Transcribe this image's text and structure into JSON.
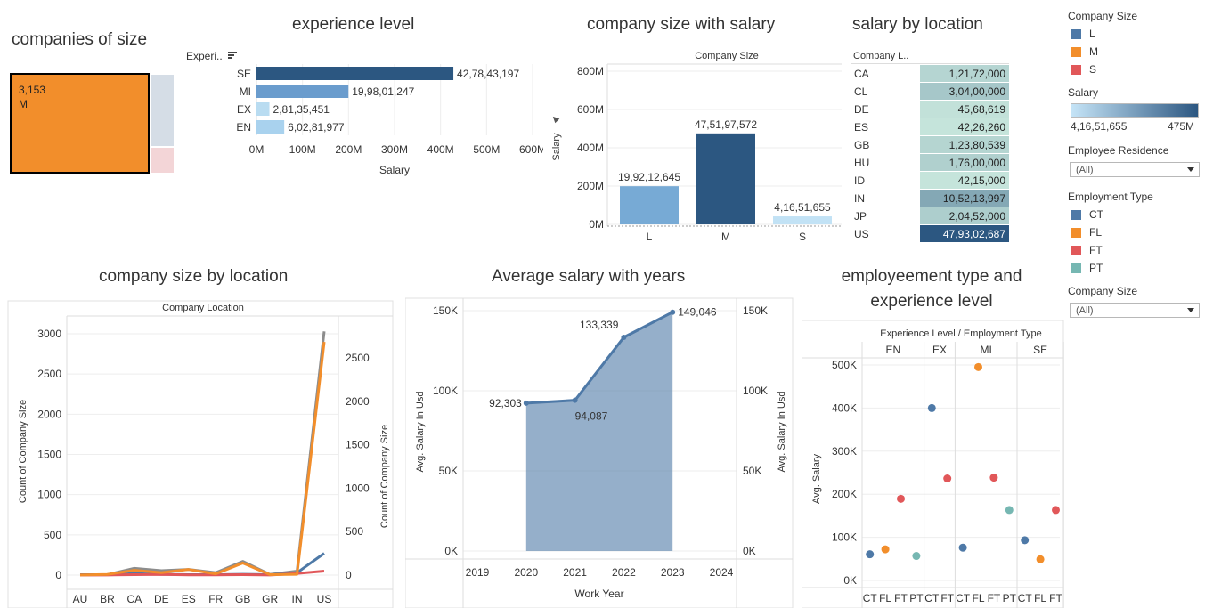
{
  "titles": {
    "companies_of_size": "companies of size",
    "experience_level": "experience level",
    "company_size_salary": "company size with salary",
    "salary_by_location": "salary by location",
    "company_size_location": "company size by location",
    "avg_salary_years": "Average salary with years",
    "emp_type_exp_line1": "employeement type and",
    "emp_type_exp_line2": "experience level"
  },
  "legend": {
    "company_size_title": "Company Size",
    "company_size_items": [
      {
        "label": "L",
        "color": "#4e79a7"
      },
      {
        "label": "M",
        "color": "#f28e2b"
      },
      {
        "label": "S",
        "color": "#e15759"
      }
    ],
    "salary_title": "Salary",
    "salary_min": "4,16,51,655",
    "salary_max": "475M",
    "employee_residence_title": "Employee Residence",
    "employee_residence_value": "(All)",
    "employment_type_title": "Employment Type",
    "employment_type_items": [
      {
        "label": "CT",
        "color": "#4e79a7"
      },
      {
        "label": "FL",
        "color": "#f28e2b"
      },
      {
        "label": "FT",
        "color": "#e15759"
      },
      {
        "label": "PT",
        "color": "#76b7b2"
      }
    ],
    "company_size_filter_title": "Company Size",
    "company_size_filter_value": "(All)"
  },
  "treemap": {
    "value": "3,153",
    "label": "M"
  },
  "salary_location": {
    "header": "Company L..",
    "rows": [
      {
        "loc": "CA",
        "value": "1,21,72,000"
      },
      {
        "loc": "CL",
        "value": "3,04,00,000"
      },
      {
        "loc": "DE",
        "value": "45,68,619"
      },
      {
        "loc": "ES",
        "value": "42,26,260"
      },
      {
        "loc": "GB",
        "value": "1,23,80,539"
      },
      {
        "loc": "HU",
        "value": "1,76,00,000"
      },
      {
        "loc": "ID",
        "value": "42,15,000"
      },
      {
        "loc": "IN",
        "value": "10,52,13,997"
      },
      {
        "loc": "JP",
        "value": "2,04,52,000"
      },
      {
        "loc": "US",
        "value": "47,93,02,687"
      }
    ]
  },
  "chart_data": [
    {
      "type": "bar",
      "orientation": "horizontal",
      "title": "experience level",
      "y_header": "Experi..",
      "xlabel": "Salary",
      "categories": [
        "SE",
        "MI",
        "EX",
        "EN"
      ],
      "values": [
        427843197,
        199801247,
        28135451,
        60281977
      ],
      "labels": [
        "42,78,43,197",
        "19,98,01,247",
        "2,81,35,451",
        "6,02,81,977"
      ],
      "colors": [
        "#2c5781",
        "#6a9ccd",
        "#b9dcf1",
        "#a9d2ee"
      ],
      "xlim": [
        0,
        600000000
      ],
      "xticks": [
        "0M",
        "100M",
        "200M",
        "300M",
        "400M",
        "500M",
        "600M"
      ]
    },
    {
      "type": "bar",
      "title": "company size with salary",
      "header": "Company Size",
      "ylabel": "Salary",
      "categories": [
        "L",
        "M",
        "S"
      ],
      "values": [
        199212645,
        475197572,
        41651655
      ],
      "labels": [
        "19,92,12,645",
        "47,51,97,572",
        "4,16,51,655"
      ],
      "colors": [
        "#77aad5",
        "#2c5781",
        "#c2e2f5"
      ],
      "ylim": [
        0,
        800000000
      ],
      "yticks": [
        "0M",
        "200M",
        "400M",
        "600M",
        "800M"
      ]
    },
    {
      "type": "line",
      "title": "company size by location",
      "header": "Company Location",
      "ylabel": "Count of Company Size",
      "ylabel_right": "Count of Company Size",
      "categories": [
        "AU",
        "BR",
        "CA",
        "DE",
        "ES",
        "FR",
        "GB",
        "GR",
        "IN",
        "US"
      ],
      "ylim_left": [
        0,
        3000
      ],
      "ylim_right": [
        0,
        2500
      ],
      "yticks_left": [
        "0",
        "500",
        "1000",
        "1500",
        "2000",
        "2500",
        "3000"
      ],
      "yticks_right": [
        "0",
        "500",
        "1000",
        "1500",
        "2000",
        "2500"
      ],
      "series": [
        {
          "name": "L",
          "color": "#4e79a7",
          "values": [
            5,
            5,
            20,
            10,
            5,
            5,
            10,
            5,
            30,
            270
          ]
        },
        {
          "name": "M",
          "color": "#f28e2b",
          "values": [
            2,
            8,
            60,
            30,
            70,
            15,
            150,
            5,
            10,
            2900
          ]
        },
        {
          "name": "S",
          "color": "#e15759",
          "values": [
            1,
            2,
            5,
            8,
            3,
            3,
            5,
            1,
            20,
            50
          ]
        },
        {
          "name": "",
          "color": "#8c8c8c",
          "values": [
            3,
            6,
            85,
            55,
            70,
            30,
            170,
            8,
            50,
            3030
          ]
        }
      ]
    },
    {
      "type": "area",
      "title": "Average salary with years",
      "xlabel": "Work Year",
      "ylabel": "Avg. Salary In Usd",
      "ylabel_right": "Avg. Salary In Usd",
      "x": [
        2020,
        2021,
        2022,
        2023
      ],
      "values": [
        92303,
        94087,
        133339,
        149046
      ],
      "labels": [
        "92,303",
        "94,087",
        "133,339",
        "149,046"
      ],
      "xticks": [
        "2019",
        "2020",
        "2021",
        "2022",
        "2023",
        "2024"
      ],
      "ylim": [
        0,
        150000
      ],
      "yticks": [
        "0K",
        "50K",
        "100K",
        "150K"
      ],
      "color": "#4e79a7"
    },
    {
      "type": "scatter",
      "title": "employeement type and experience level",
      "header": "Experience Level / Employment Type",
      "ylabel": "Avg. Salary",
      "groups": [
        {
          "level": "EN",
          "types": [
            "CT",
            "FL",
            "FT",
            "PT"
          ]
        },
        {
          "level": "EX",
          "types": [
            "CT",
            "FT"
          ]
        },
        {
          "level": "MI",
          "types": [
            "CT",
            "FL",
            "FT",
            "PT"
          ]
        },
        {
          "level": "SE",
          "types": [
            "CT",
            "FL",
            "FT"
          ]
        }
      ],
      "points": [
        {
          "level": "EN",
          "type": "CT",
          "value": 63000
        },
        {
          "level": "EN",
          "type": "FL",
          "value": 75000
        },
        {
          "level": "EN",
          "type": "FT",
          "value": 197000
        },
        {
          "level": "EN",
          "type": "PT",
          "value": 59000
        },
        {
          "level": "EX",
          "type": "CT",
          "value": 416000
        },
        {
          "level": "EX",
          "type": "FT",
          "value": 246000
        },
        {
          "level": "MI",
          "type": "CT",
          "value": 79000
        },
        {
          "level": "MI",
          "type": "FL",
          "value": 515000
        },
        {
          "level": "MI",
          "type": "FT",
          "value": 248000
        },
        {
          "level": "MI",
          "type": "PT",
          "value": 170000
        },
        {
          "level": "SE",
          "type": "CT",
          "value": 97000
        },
        {
          "level": "SE",
          "type": "FL",
          "value": 51000
        },
        {
          "level": "SE",
          "type": "FT",
          "value": 170000
        }
      ],
      "colors": {
        "CT": "#4e79a7",
        "FL": "#f28e2b",
        "FT": "#e15759",
        "PT": "#76b7b2"
      },
      "ylim": [
        0,
        520000
      ],
      "yticks": [
        "0K",
        "100K",
        "200K",
        "300K",
        "400K",
        "500K"
      ]
    }
  ]
}
